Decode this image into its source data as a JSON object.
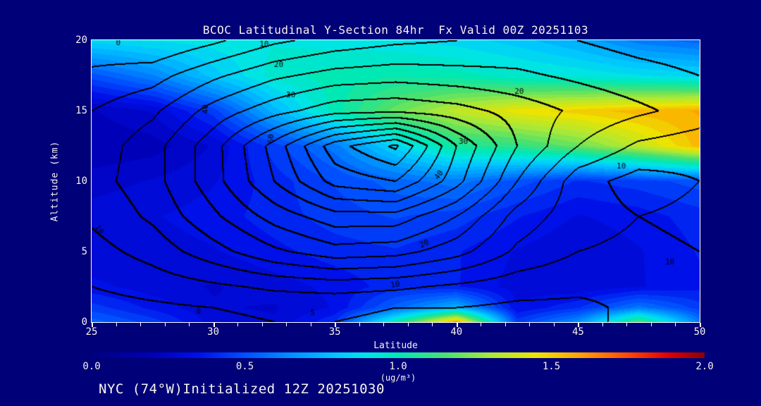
{
  "title": "BCOC Latitudinal Y-Section 84hr  Fx Valid 00Z 20251103",
  "footer": "NYC (74°W)Initialized 12Z 20251030",
  "colors": {
    "background": "#000078",
    "text": "#f8f3ef",
    "frame": "#ffffff",
    "contour_line": "#000000"
  },
  "plot": {
    "x_axis": {
      "label": "Latitude",
      "min": 25,
      "max": 50,
      "major_ticks": [
        25,
        30,
        35,
        40,
        45,
        50
      ],
      "minor_step": 1
    },
    "y_axis": {
      "label": "Altitude (km)",
      "min": 0,
      "max": 20,
      "major_ticks": [
        0,
        5,
        10,
        15,
        20
      ]
    }
  },
  "colorbar": {
    "ticks": [
      "0.0",
      "0.5",
      "1.0",
      "1.5",
      "2.0"
    ],
    "unit": "(ug/m³)",
    "min": 0,
    "max": 2
  },
  "chart_data": {
    "type": "filled_contour_section",
    "title": "BCOC Latitudinal Y-Section 84hr  Fx Valid 00Z 20251103",
    "xlabel": "Latitude",
    "ylabel": "Altitude (km)",
    "fill_units": "ug/m3",
    "fill_range": [
      0,
      2
    ],
    "x": [
      25,
      27.5,
      30,
      32.5,
      35,
      37.5,
      40,
      42.5,
      45,
      47.5,
      50
    ],
    "y": [
      0,
      1,
      2.5,
      5,
      7.5,
      10,
      12.5,
      15,
      17.5,
      20
    ],
    "fill_values": [
      [
        0.55,
        0.45,
        0.3,
        0.28,
        0.42,
        1.0,
        1.6,
        0.45,
        0.65,
        1.15,
        0.6
      ],
      [
        0.45,
        0.36,
        0.28,
        0.27,
        0.33,
        0.55,
        0.75,
        0.33,
        0.42,
        0.6,
        0.45
      ],
      [
        0.34,
        0.3,
        0.27,
        0.3,
        0.34,
        0.4,
        0.38,
        0.3,
        0.28,
        0.32,
        0.36
      ],
      [
        0.28,
        0.3,
        0.32,
        0.36,
        0.4,
        0.42,
        0.38,
        0.32,
        0.28,
        0.32,
        0.38
      ],
      [
        0.3,
        0.32,
        0.35,
        0.4,
        0.45,
        0.48,
        0.45,
        0.38,
        0.32,
        0.35,
        0.4
      ],
      [
        0.25,
        0.28,
        0.32,
        0.4,
        0.48,
        0.55,
        0.6,
        0.5,
        0.42,
        0.45,
        0.5
      ],
      [
        0.18,
        0.2,
        0.28,
        0.45,
        0.6,
        0.85,
        1.05,
        1.1,
        1.2,
        1.35,
        1.55
      ],
      [
        0.22,
        0.28,
        0.45,
        0.75,
        1.0,
        1.2,
        1.35,
        1.45,
        1.5,
        1.55,
        1.58
      ],
      [
        0.5,
        0.62,
        0.8,
        0.95,
        1.0,
        1.02,
        1.0,
        0.95,
        0.92,
        0.88,
        0.85
      ],
      [
        0.85,
        0.88,
        0.9,
        0.92,
        0.9,
        0.88,
        0.85,
        0.8,
        0.72,
        0.6,
        0.55
      ]
    ],
    "colormap": [
      [
        0.0,
        "#000080"
      ],
      [
        0.2,
        "#0000b8"
      ],
      [
        0.35,
        "#0010e8"
      ],
      [
        0.5,
        "#0050ff"
      ],
      [
        0.65,
        "#0090ff"
      ],
      [
        0.8,
        "#00c8ff"
      ],
      [
        0.9,
        "#00e4e4"
      ],
      [
        1.0,
        "#00e8b4"
      ],
      [
        1.15,
        "#48e070"
      ],
      [
        1.3,
        "#a8e838"
      ],
      [
        1.45,
        "#ece400"
      ],
      [
        1.6,
        "#ffa000"
      ],
      [
        1.75,
        "#ff4800"
      ],
      [
        1.88,
        "#e00000"
      ],
      [
        2.0,
        "#8c0000"
      ]
    ],
    "line_contours": {
      "interval": 5,
      "values": [
        [
          2,
          3,
          4,
          5,
          5,
          4,
          4,
          3,
          4,
          6,
          8
        ],
        [
          3,
          4,
          5,
          6,
          6,
          5,
          5,
          4,
          4,
          6,
          8
        ],
        [
          5,
          7,
          9,
          11,
          12,
          11,
          9,
          7,
          6,
          6,
          8
        ],
        [
          8,
          12,
          18,
          24,
          28,
          27,
          22,
          14,
          10,
          9,
          10
        ],
        [
          11,
          16,
          24,
          32,
          38,
          38,
          30,
          18,
          12,
          10,
          11
        ],
        [
          13,
          18,
          28,
          40,
          52,
          55,
          42,
          25,
          12,
          8,
          10
        ],
        [
          12,
          18,
          28,
          42,
          58,
          66,
          45,
          30,
          20,
          14,
          12
        ],
        [
          10,
          14,
          22,
          28,
          33,
          34,
          32,
          28,
          24,
          21,
          18
        ],
        [
          6,
          8,
          14,
          19,
          22,
          23,
          22,
          21,
          19,
          17,
          15
        ],
        [
          2,
          0,
          4,
          9,
          12,
          14,
          15,
          16,
          15,
          13,
          12
        ]
      ],
      "labels": [
        {
          "text": "0",
          "lat": 26.1,
          "alt": 19.8,
          "rot": 0
        },
        {
          "text": "10",
          "lat": 32.1,
          "alt": 19.7,
          "rot": 0
        },
        {
          "text": "20",
          "lat": 32.7,
          "alt": 18.25,
          "rot": 0
        },
        {
          "text": "30",
          "lat": 33.2,
          "alt": 16.1,
          "rot": 0
        },
        {
          "text": "40",
          "lat": 29.7,
          "alt": 15.1,
          "rot": -90
        },
        {
          "text": "60",
          "lat": 32.4,
          "alt": 13.0,
          "rot": -90
        },
        {
          "text": "20",
          "lat": 42.6,
          "alt": 16.35,
          "rot": 0
        },
        {
          "text": "30",
          "lat": 40.3,
          "alt": 12.75,
          "rot": 0
        },
        {
          "text": "40",
          "lat": 39.3,
          "alt": 10.4,
          "rot": -55
        },
        {
          "text": "10",
          "lat": 46.8,
          "alt": 11.0,
          "rot": 0
        },
        {
          "text": "10",
          "lat": 48.8,
          "alt": 4.2,
          "rot": 0
        },
        {
          "text": "20",
          "lat": 38.7,
          "alt": 5.5,
          "rot": -25
        },
        {
          "text": "10",
          "lat": 25.3,
          "alt": 6.5,
          "rot": 55
        },
        {
          "text": "10",
          "lat": 37.5,
          "alt": 2.6,
          "rot": -10
        },
        {
          "text": "5",
          "lat": 34.1,
          "alt": 0.6,
          "rot": 0
        },
        {
          "text": "0",
          "lat": 29.4,
          "alt": 0.7,
          "rot": 0
        }
      ]
    }
  }
}
